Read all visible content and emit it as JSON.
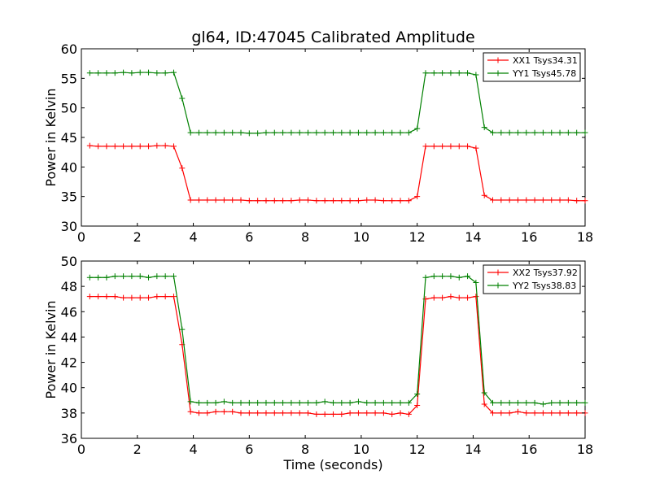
{
  "title": "gl64, ID:47045 Calibrated Amplitude",
  "colors": {
    "xx": "#ff0000",
    "yy": "#008000"
  },
  "chart_data": [
    {
      "type": "line",
      "title": "gl64, ID:47045 Calibrated Amplitude",
      "xlabel": "",
      "ylabel": "Power in Kelvin",
      "xlim": [
        0,
        18
      ],
      "ylim": [
        30,
        60
      ],
      "xticks": [
        0,
        2,
        4,
        6,
        8,
        10,
        12,
        14,
        16,
        18
      ],
      "yticks": [
        30,
        35,
        40,
        45,
        50,
        55,
        60
      ],
      "grid": false,
      "legend": "top-right",
      "marker": "+",
      "series": [
        {
          "name": "XX1 Tsys34.31",
          "color": "#ff0000",
          "x": [
            0.3,
            0.6,
            0.9,
            1.2,
            1.5,
            1.8,
            2.1,
            2.4,
            2.7,
            3.0,
            3.3,
            3.6,
            3.9,
            4.2,
            4.5,
            4.8,
            5.1,
            5.4,
            5.7,
            6.0,
            6.3,
            6.6,
            6.9,
            7.2,
            7.5,
            7.8,
            8.1,
            8.4,
            8.7,
            9.0,
            9.3,
            9.6,
            9.9,
            10.2,
            10.5,
            10.8,
            11.1,
            11.4,
            11.7,
            12.0,
            12.3,
            12.6,
            12.9,
            13.2,
            13.5,
            13.8,
            14.1,
            14.4,
            14.7,
            15.0,
            15.3,
            15.6,
            15.9,
            16.2,
            16.5,
            16.8,
            17.1,
            17.4,
            17.7,
            18.0
          ],
          "y": [
            43.6,
            43.5,
            43.5,
            43.5,
            43.5,
            43.5,
            43.5,
            43.5,
            43.6,
            43.6,
            43.5,
            39.8,
            34.4,
            34.4,
            34.4,
            34.4,
            34.4,
            34.4,
            34.4,
            34.3,
            34.3,
            34.3,
            34.3,
            34.3,
            34.3,
            34.4,
            34.4,
            34.3,
            34.3,
            34.3,
            34.3,
            34.3,
            34.3,
            34.4,
            34.4,
            34.3,
            34.3,
            34.3,
            34.3,
            35.0,
            43.5,
            43.5,
            43.5,
            43.5,
            43.5,
            43.5,
            43.2,
            35.2,
            34.4,
            34.4,
            34.4,
            34.4,
            34.4,
            34.4,
            34.4,
            34.4,
            34.4,
            34.4,
            34.3,
            34.3
          ]
        },
        {
          "name": "YY1 Tsys45.78",
          "color": "#008000",
          "x": [
            0.3,
            0.6,
            0.9,
            1.2,
            1.5,
            1.8,
            2.1,
            2.4,
            2.7,
            3.0,
            3.3,
            3.6,
            3.9,
            4.2,
            4.5,
            4.8,
            5.1,
            5.4,
            5.7,
            6.0,
            6.3,
            6.6,
            6.9,
            7.2,
            7.5,
            7.8,
            8.1,
            8.4,
            8.7,
            9.0,
            9.3,
            9.6,
            9.9,
            10.2,
            10.5,
            10.8,
            11.1,
            11.4,
            11.7,
            12.0,
            12.3,
            12.6,
            12.9,
            13.2,
            13.5,
            13.8,
            14.1,
            14.4,
            14.7,
            15.0,
            15.3,
            15.6,
            15.9,
            16.2,
            16.5,
            16.8,
            17.1,
            17.4,
            17.7,
            18.0
          ],
          "y": [
            55.9,
            55.9,
            55.9,
            55.9,
            56.0,
            55.9,
            56.0,
            56.0,
            55.9,
            55.9,
            56.0,
            51.6,
            45.8,
            45.8,
            45.8,
            45.8,
            45.8,
            45.8,
            45.8,
            45.7,
            45.7,
            45.8,
            45.8,
            45.8,
            45.8,
            45.8,
            45.8,
            45.8,
            45.8,
            45.8,
            45.8,
            45.8,
            45.8,
            45.8,
            45.8,
            45.8,
            45.8,
            45.8,
            45.8,
            46.5,
            55.9,
            55.9,
            55.9,
            55.9,
            55.9,
            55.9,
            55.6,
            46.7,
            45.8,
            45.8,
            45.8,
            45.8,
            45.8,
            45.8,
            45.8,
            45.8,
            45.8,
            45.8,
            45.8,
            45.8
          ]
        }
      ]
    },
    {
      "type": "line",
      "title": "",
      "xlabel": "Time (seconds)",
      "ylabel": "Power in Kelvin",
      "xlim": [
        0,
        18
      ],
      "ylim": [
        36,
        50
      ],
      "xticks": [
        0,
        2,
        4,
        6,
        8,
        10,
        12,
        14,
        16,
        18
      ],
      "yticks": [
        36,
        38,
        40,
        42,
        44,
        46,
        48,
        50
      ],
      "grid": false,
      "legend": "top-right",
      "marker": "+",
      "series": [
        {
          "name": "XX2 Tsys37.92",
          "color": "#ff0000",
          "x": [
            0.3,
            0.6,
            0.9,
            1.2,
            1.5,
            1.8,
            2.1,
            2.4,
            2.7,
            3.0,
            3.3,
            3.6,
            3.9,
            4.2,
            4.5,
            4.8,
            5.1,
            5.4,
            5.7,
            6.0,
            6.3,
            6.6,
            6.9,
            7.2,
            7.5,
            7.8,
            8.1,
            8.4,
            8.7,
            9.0,
            9.3,
            9.6,
            9.9,
            10.2,
            10.5,
            10.8,
            11.1,
            11.4,
            11.7,
            12.0,
            12.3,
            12.6,
            12.9,
            13.2,
            13.5,
            13.8,
            14.1,
            14.4,
            14.7,
            15.0,
            15.3,
            15.6,
            15.9,
            16.2,
            16.5,
            16.8,
            17.1,
            17.4,
            17.7,
            18.0
          ],
          "y": [
            47.2,
            47.2,
            47.2,
            47.2,
            47.1,
            47.1,
            47.1,
            47.1,
            47.2,
            47.2,
            47.2,
            43.4,
            38.1,
            38.0,
            38.0,
            38.1,
            38.1,
            38.1,
            38.0,
            38.0,
            38.0,
            38.0,
            38.0,
            38.0,
            38.0,
            38.0,
            38.0,
            37.9,
            37.9,
            37.9,
            37.9,
            38.0,
            38.0,
            38.0,
            38.0,
            38.0,
            37.9,
            38.0,
            37.9,
            38.6,
            47.0,
            47.1,
            47.1,
            47.2,
            47.1,
            47.1,
            47.2,
            38.7,
            38.0,
            38.0,
            38.0,
            38.1,
            38.0,
            38.0,
            38.0,
            38.0,
            38.0,
            38.0,
            38.0,
            38.0
          ]
        },
        {
          "name": "YY2 Tsys38.83",
          "color": "#008000",
          "x": [
            0.3,
            0.6,
            0.9,
            1.2,
            1.5,
            1.8,
            2.1,
            2.4,
            2.7,
            3.0,
            3.3,
            3.6,
            3.9,
            4.2,
            4.5,
            4.8,
            5.1,
            5.4,
            5.7,
            6.0,
            6.3,
            6.6,
            6.9,
            7.2,
            7.5,
            7.8,
            8.1,
            8.4,
            8.7,
            9.0,
            9.3,
            9.6,
            9.9,
            10.2,
            10.5,
            10.8,
            11.1,
            11.4,
            11.7,
            12.0,
            12.3,
            12.6,
            12.9,
            13.2,
            13.5,
            13.8,
            14.1,
            14.4,
            14.7,
            15.0,
            15.3,
            15.6,
            15.9,
            16.2,
            16.5,
            16.8,
            17.1,
            17.4,
            17.7,
            18.0
          ],
          "y": [
            48.7,
            48.7,
            48.7,
            48.8,
            48.8,
            48.8,
            48.8,
            48.7,
            48.8,
            48.8,
            48.8,
            44.6,
            38.9,
            38.8,
            38.8,
            38.8,
            38.9,
            38.8,
            38.8,
            38.8,
            38.8,
            38.8,
            38.8,
            38.8,
            38.8,
            38.8,
            38.8,
            38.8,
            38.9,
            38.8,
            38.8,
            38.8,
            38.9,
            38.8,
            38.8,
            38.8,
            38.8,
            38.8,
            38.8,
            39.5,
            48.7,
            48.8,
            48.8,
            48.8,
            48.7,
            48.8,
            48.3,
            39.6,
            38.8,
            38.8,
            38.8,
            38.8,
            38.8,
            38.8,
            38.7,
            38.8,
            38.8,
            38.8,
            38.8,
            38.8
          ]
        }
      ]
    }
  ]
}
